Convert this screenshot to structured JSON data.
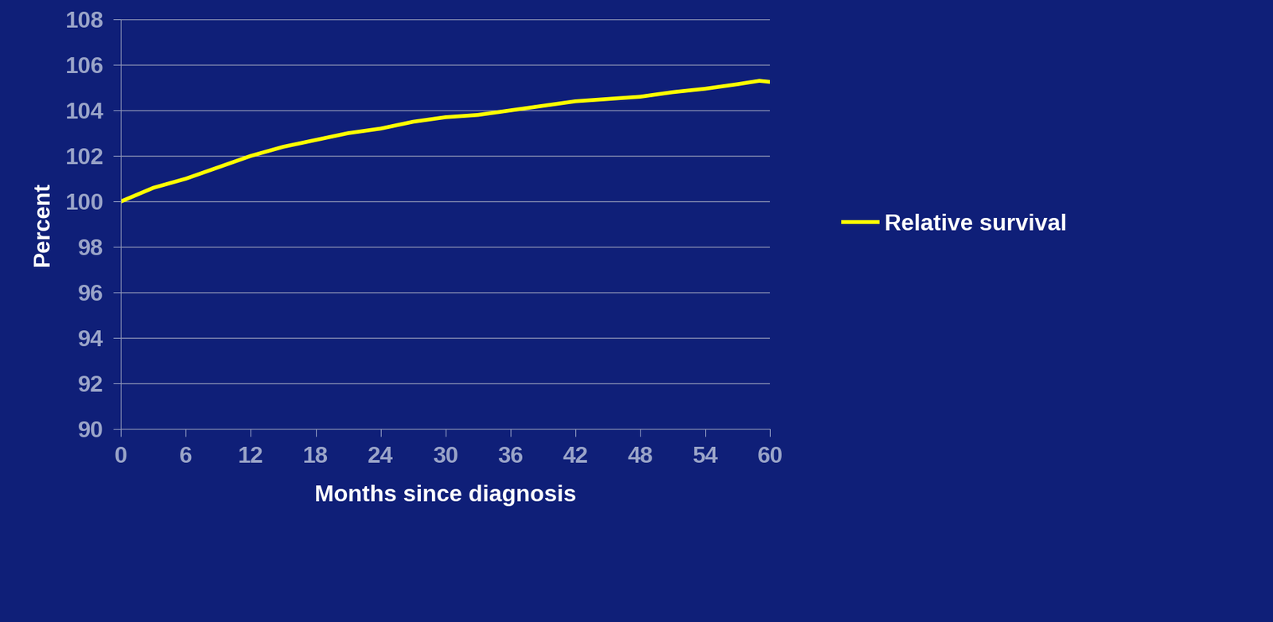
{
  "chart_data": {
    "type": "line",
    "x_label": "Months since diagnosis",
    "y_label": "Percent",
    "x": [
      0,
      3,
      6,
      9,
      12,
      15,
      18,
      21,
      24,
      27,
      30,
      33,
      36,
      39,
      42,
      45,
      48,
      51,
      54,
      57,
      59,
      60
    ],
    "series": [
      {
        "name": "Relative survival",
        "color": "#ffff00",
        "values": [
          100.0,
          100.6,
          101.0,
          101.5,
          102.0,
          102.4,
          102.7,
          103.0,
          103.2,
          103.5,
          103.7,
          103.8,
          104.0,
          104.2,
          104.4,
          104.5,
          104.6,
          104.8,
          104.95,
          105.15,
          105.3,
          105.25
        ]
      }
    ],
    "xlim": [
      0,
      60
    ],
    "xticks": [
      0,
      6,
      12,
      18,
      24,
      30,
      36,
      42,
      48,
      54,
      60
    ],
    "ylim": [
      90,
      108
    ],
    "yticks": [
      90,
      92,
      94,
      96,
      98,
      100,
      102,
      104,
      106,
      108
    ],
    "grid": true,
    "legend": "right"
  }
}
